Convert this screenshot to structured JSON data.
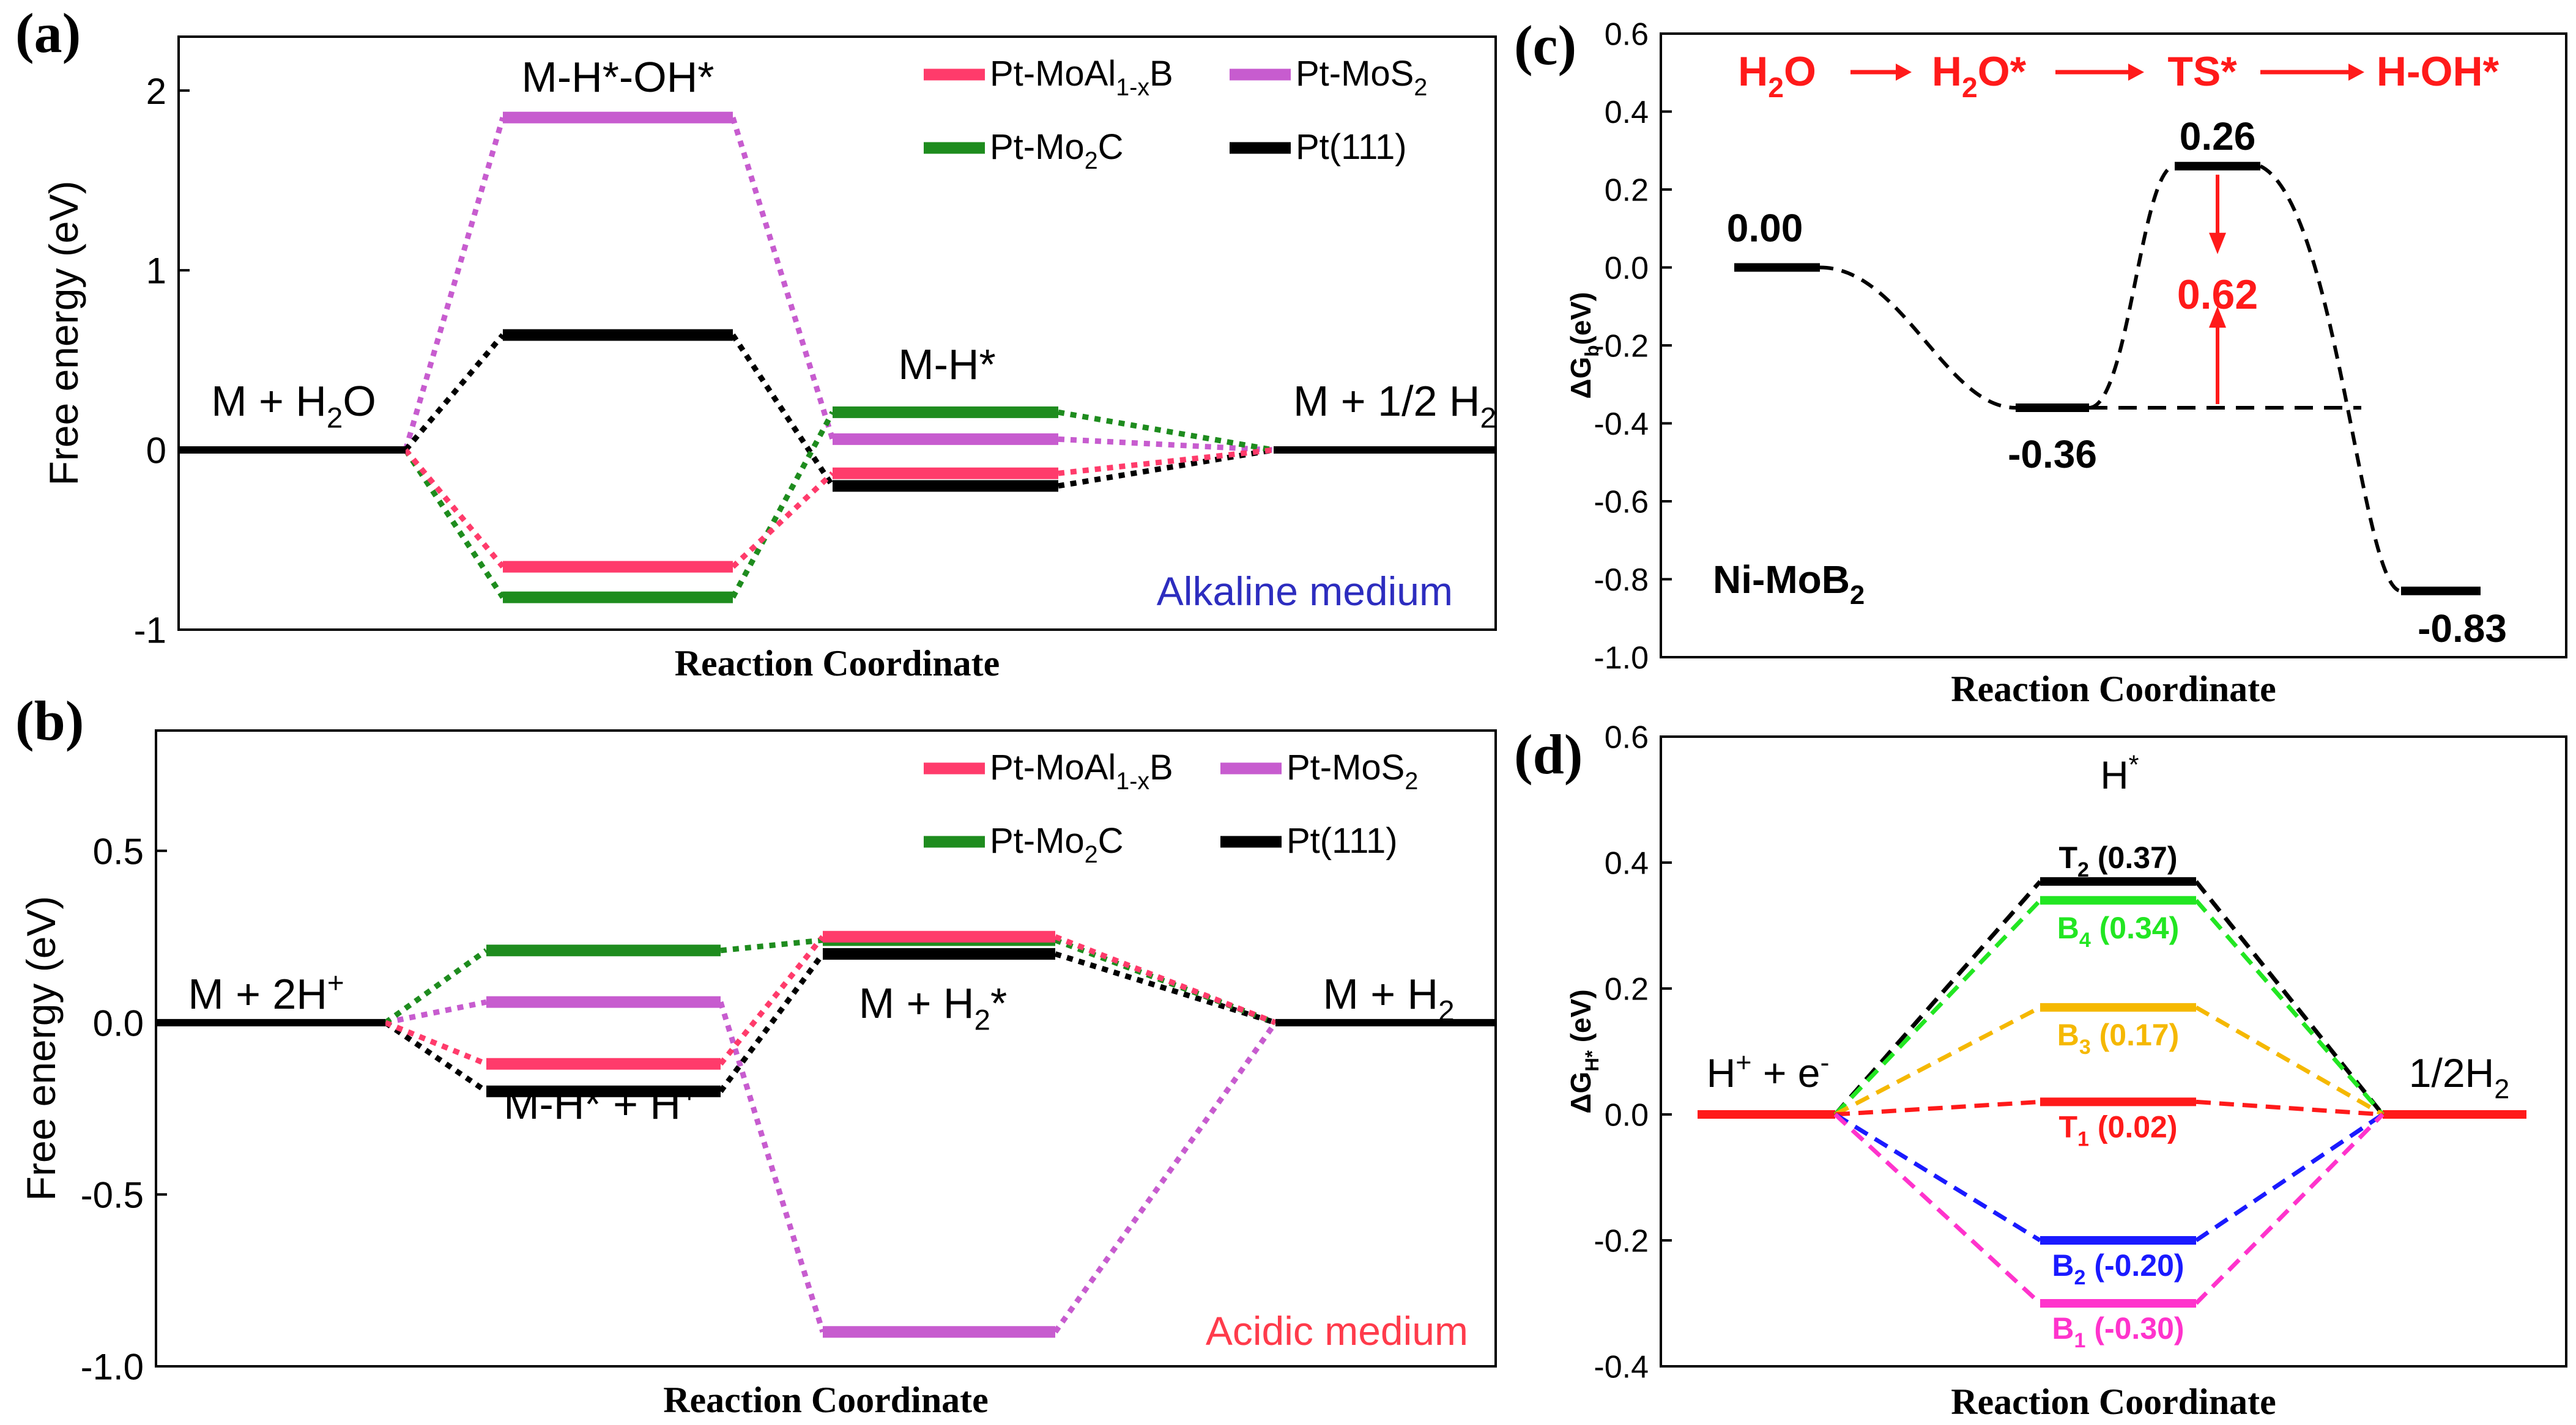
{
  "chart_data": [
    {
      "id": "a",
      "type": "energy-diagram",
      "panel_label": "(a)",
      "title": "",
      "xlabel": "Reaction Coordinate",
      "ylabel": "Free energy (eV)",
      "ylim": [
        -1.0,
        2.3
      ],
      "yticks": [
        -1,
        0,
        1,
        2
      ],
      "ytick_labels": [
        "-1",
        "0",
        "1",
        "2"
      ],
      "medium_label": "Alkaline medium",
      "colors": {
        "Pt-MoAl1-xB": "#ff3b6b",
        "Pt-MoS2": "#c75ccf",
        "Pt-Mo2C": "#1e8c1e",
        "Pt(111)": "#000000",
        "medium": "#2d2dbf"
      },
      "legend": [
        {
          "key": "Pt-MoAl1-xB",
          "text": "Pt-MoAl",
          "sub": "1-x",
          "suffix": "B"
        },
        {
          "key": "Pt-MoS2",
          "text": "Pt-MoS",
          "sub": "2",
          "suffix": ""
        },
        {
          "key": "Pt-Mo2C",
          "text": "Pt-Mo",
          "sub": "2",
          "suffix": "C"
        },
        {
          "key": "Pt(111)",
          "text": "Pt(111)",
          "sub": "",
          "suffix": ""
        }
      ],
      "states": [
        {
          "text": "M + H",
          "sub": "2",
          "suffix": "O"
        },
        {
          "text": "M-H*-OH*",
          "sub": "",
          "suffix": ""
        },
        {
          "text": "M-H*",
          "sub": "",
          "suffix": ""
        },
        {
          "text": "M + 1/2 H",
          "sub": "2",
          "suffix": ""
        }
      ],
      "series": [
        {
          "name": "Pt-MoAl1-xB",
          "values": [
            0.0,
            -0.65,
            -0.13,
            0.0
          ]
        },
        {
          "name": "Pt-MoS2",
          "values": [
            0.0,
            1.85,
            0.06,
            0.0
          ]
        },
        {
          "name": "Pt-Mo2C",
          "values": [
            0.0,
            -0.82,
            0.21,
            0.0
          ]
        },
        {
          "name": "Pt(111)",
          "values": [
            0.0,
            0.64,
            -0.2,
            0.0
          ]
        }
      ]
    },
    {
      "id": "b",
      "type": "energy-diagram",
      "panel_label": "(b)",
      "title": "",
      "xlabel": "Reaction Coordinate",
      "ylabel": "Free energy (eV)",
      "ylim": [
        -1.0,
        0.85
      ],
      "yticks": [
        -1.0,
        -0.5,
        0.0,
        0.5
      ],
      "ytick_labels": [
        "-1.0",
        "-0.5",
        "0.0",
        "0.5"
      ],
      "medium_label": "Acidic medium",
      "colors": {
        "Pt-MoAl1-xB": "#ff3b6b",
        "Pt-MoS2": "#c75ccf",
        "Pt-Mo2C": "#1e8c1e",
        "Pt(111)": "#000000",
        "medium": "#ff3b4b"
      },
      "legend": [
        {
          "key": "Pt-MoAl1-xB",
          "text": "Pt-MoAl",
          "sub": "1-x",
          "suffix": "B"
        },
        {
          "key": "Pt-MoS2",
          "text": "Pt-MoS",
          "sub": "2",
          "suffix": ""
        },
        {
          "key": "Pt-Mo2C",
          "text": "Pt-Mo",
          "sub": "2",
          "suffix": "C"
        },
        {
          "key": "Pt(111)",
          "text": "Pt(111)",
          "sub": "",
          "suffix": ""
        }
      ],
      "states": [
        {
          "text": "M + 2H",
          "sup": "+",
          "suffix": ""
        },
        {
          "text": "M-H* + H",
          "sup": "+",
          "suffix": ""
        },
        {
          "text": "M + H",
          "sub": "2",
          "suffix": "*"
        },
        {
          "text": "M + H",
          "sub": "2",
          "suffix": ""
        }
      ],
      "series": [
        {
          "name": "Pt-MoAl1-xB",
          "values": [
            0.0,
            -0.12,
            0.25,
            0.0
          ]
        },
        {
          "name": "Pt-MoS2",
          "values": [
            0.0,
            0.06,
            -0.9,
            0.0
          ]
        },
        {
          "name": "Pt-Mo2C",
          "values": [
            0.0,
            0.21,
            0.24,
            0.0
          ]
        },
        {
          "name": "Pt(111)",
          "values": [
            0.0,
            -0.2,
            0.2,
            0.0
          ]
        }
      ]
    },
    {
      "id": "c",
      "type": "energy-profile",
      "panel_label": "(c)",
      "title": "",
      "xlabel": "Reaction Coordinate",
      "ylabel": "ΔG",
      "ylabel_sub": "b",
      "ylabel_suffix": "(eV)",
      "ylim": [
        -1.0,
        0.6
      ],
      "yticks": [
        -1.0,
        -0.8,
        -0.6,
        -0.4,
        -0.2,
        0.0,
        0.2,
        0.4,
        0.6
      ],
      "ytick_labels": [
        "-1.0",
        "-0.8",
        "-0.6",
        "-0.4",
        "-0.2",
        "0.0",
        "0.2",
        "0.4",
        "0.6"
      ],
      "pathway": [
        {
          "text": "H",
          "sub": "2",
          "suffix": "O"
        },
        {
          "text": "H",
          "sub": "2",
          "suffix": "O*"
        },
        {
          "text": "TS*",
          "sub": "",
          "suffix": ""
        },
        {
          "text": "H-OH*",
          "sub": "",
          "suffix": ""
        }
      ],
      "points": [
        {
          "label": "0.00",
          "value": 0.0
        },
        {
          "label": "-0.36",
          "value": -0.36
        },
        {
          "label": "0.26",
          "value": 0.26
        },
        {
          "label": "-0.83",
          "value": -0.83
        }
      ],
      "barrier": {
        "label": "0.62",
        "value": 0.62
      },
      "catalyst": {
        "text": "Ni-MoB",
        "sub": "2"
      },
      "colors": {
        "accent": "#ff1a1a",
        "line": "#000000"
      }
    },
    {
      "id": "d",
      "type": "energy-diagram",
      "panel_label": "(d)",
      "title": "H*",
      "xlabel": "Reaction Coordinate",
      "ylabel": "ΔG",
      "ylabel_sub": "H*",
      "ylabel_suffix": " (eV)",
      "ylim": [
        -0.4,
        0.6
      ],
      "yticks": [
        -0.4,
        -0.2,
        0.0,
        0.2,
        0.4,
        0.6
      ],
      "ytick_labels": [
        "-0.4",
        "-0.2",
        "0.0",
        "0.2",
        "0.4",
        "0.6"
      ],
      "states": [
        {
          "text": "H",
          "sup": "+",
          "mid": " + e",
          "sup2": "-"
        },
        {
          "text": "1/2H",
          "sub": "2"
        }
      ],
      "series": [
        {
          "name": "T2",
          "letter": "T",
          "index": "2",
          "value_label": " (0.37)",
          "value": 0.37,
          "color": "#000000"
        },
        {
          "name": "B4",
          "letter": "B",
          "index": "4",
          "value_label": " (0.34)",
          "value": 0.34,
          "color": "#22e622"
        },
        {
          "name": "B3",
          "letter": "B",
          "index": "3",
          "value_label": " (0.17)",
          "value": 0.17,
          "color": "#f5b800"
        },
        {
          "name": "T1",
          "letter": "T",
          "index": "1",
          "value_label": " (0.02)",
          "value": 0.02,
          "color": "#ff1a1a"
        },
        {
          "name": "B2",
          "letter": "B",
          "index": "2",
          "value_label": " (-0.20)",
          "value": -0.2,
          "color": "#1a1aff"
        },
        {
          "name": "B1",
          "letter": "B",
          "index": "1",
          "value_label": " (-0.30)",
          "value": -0.3,
          "color": "#ff33cc"
        }
      ],
      "colors": {
        "endpoints": "#ff1a1a"
      }
    }
  ]
}
